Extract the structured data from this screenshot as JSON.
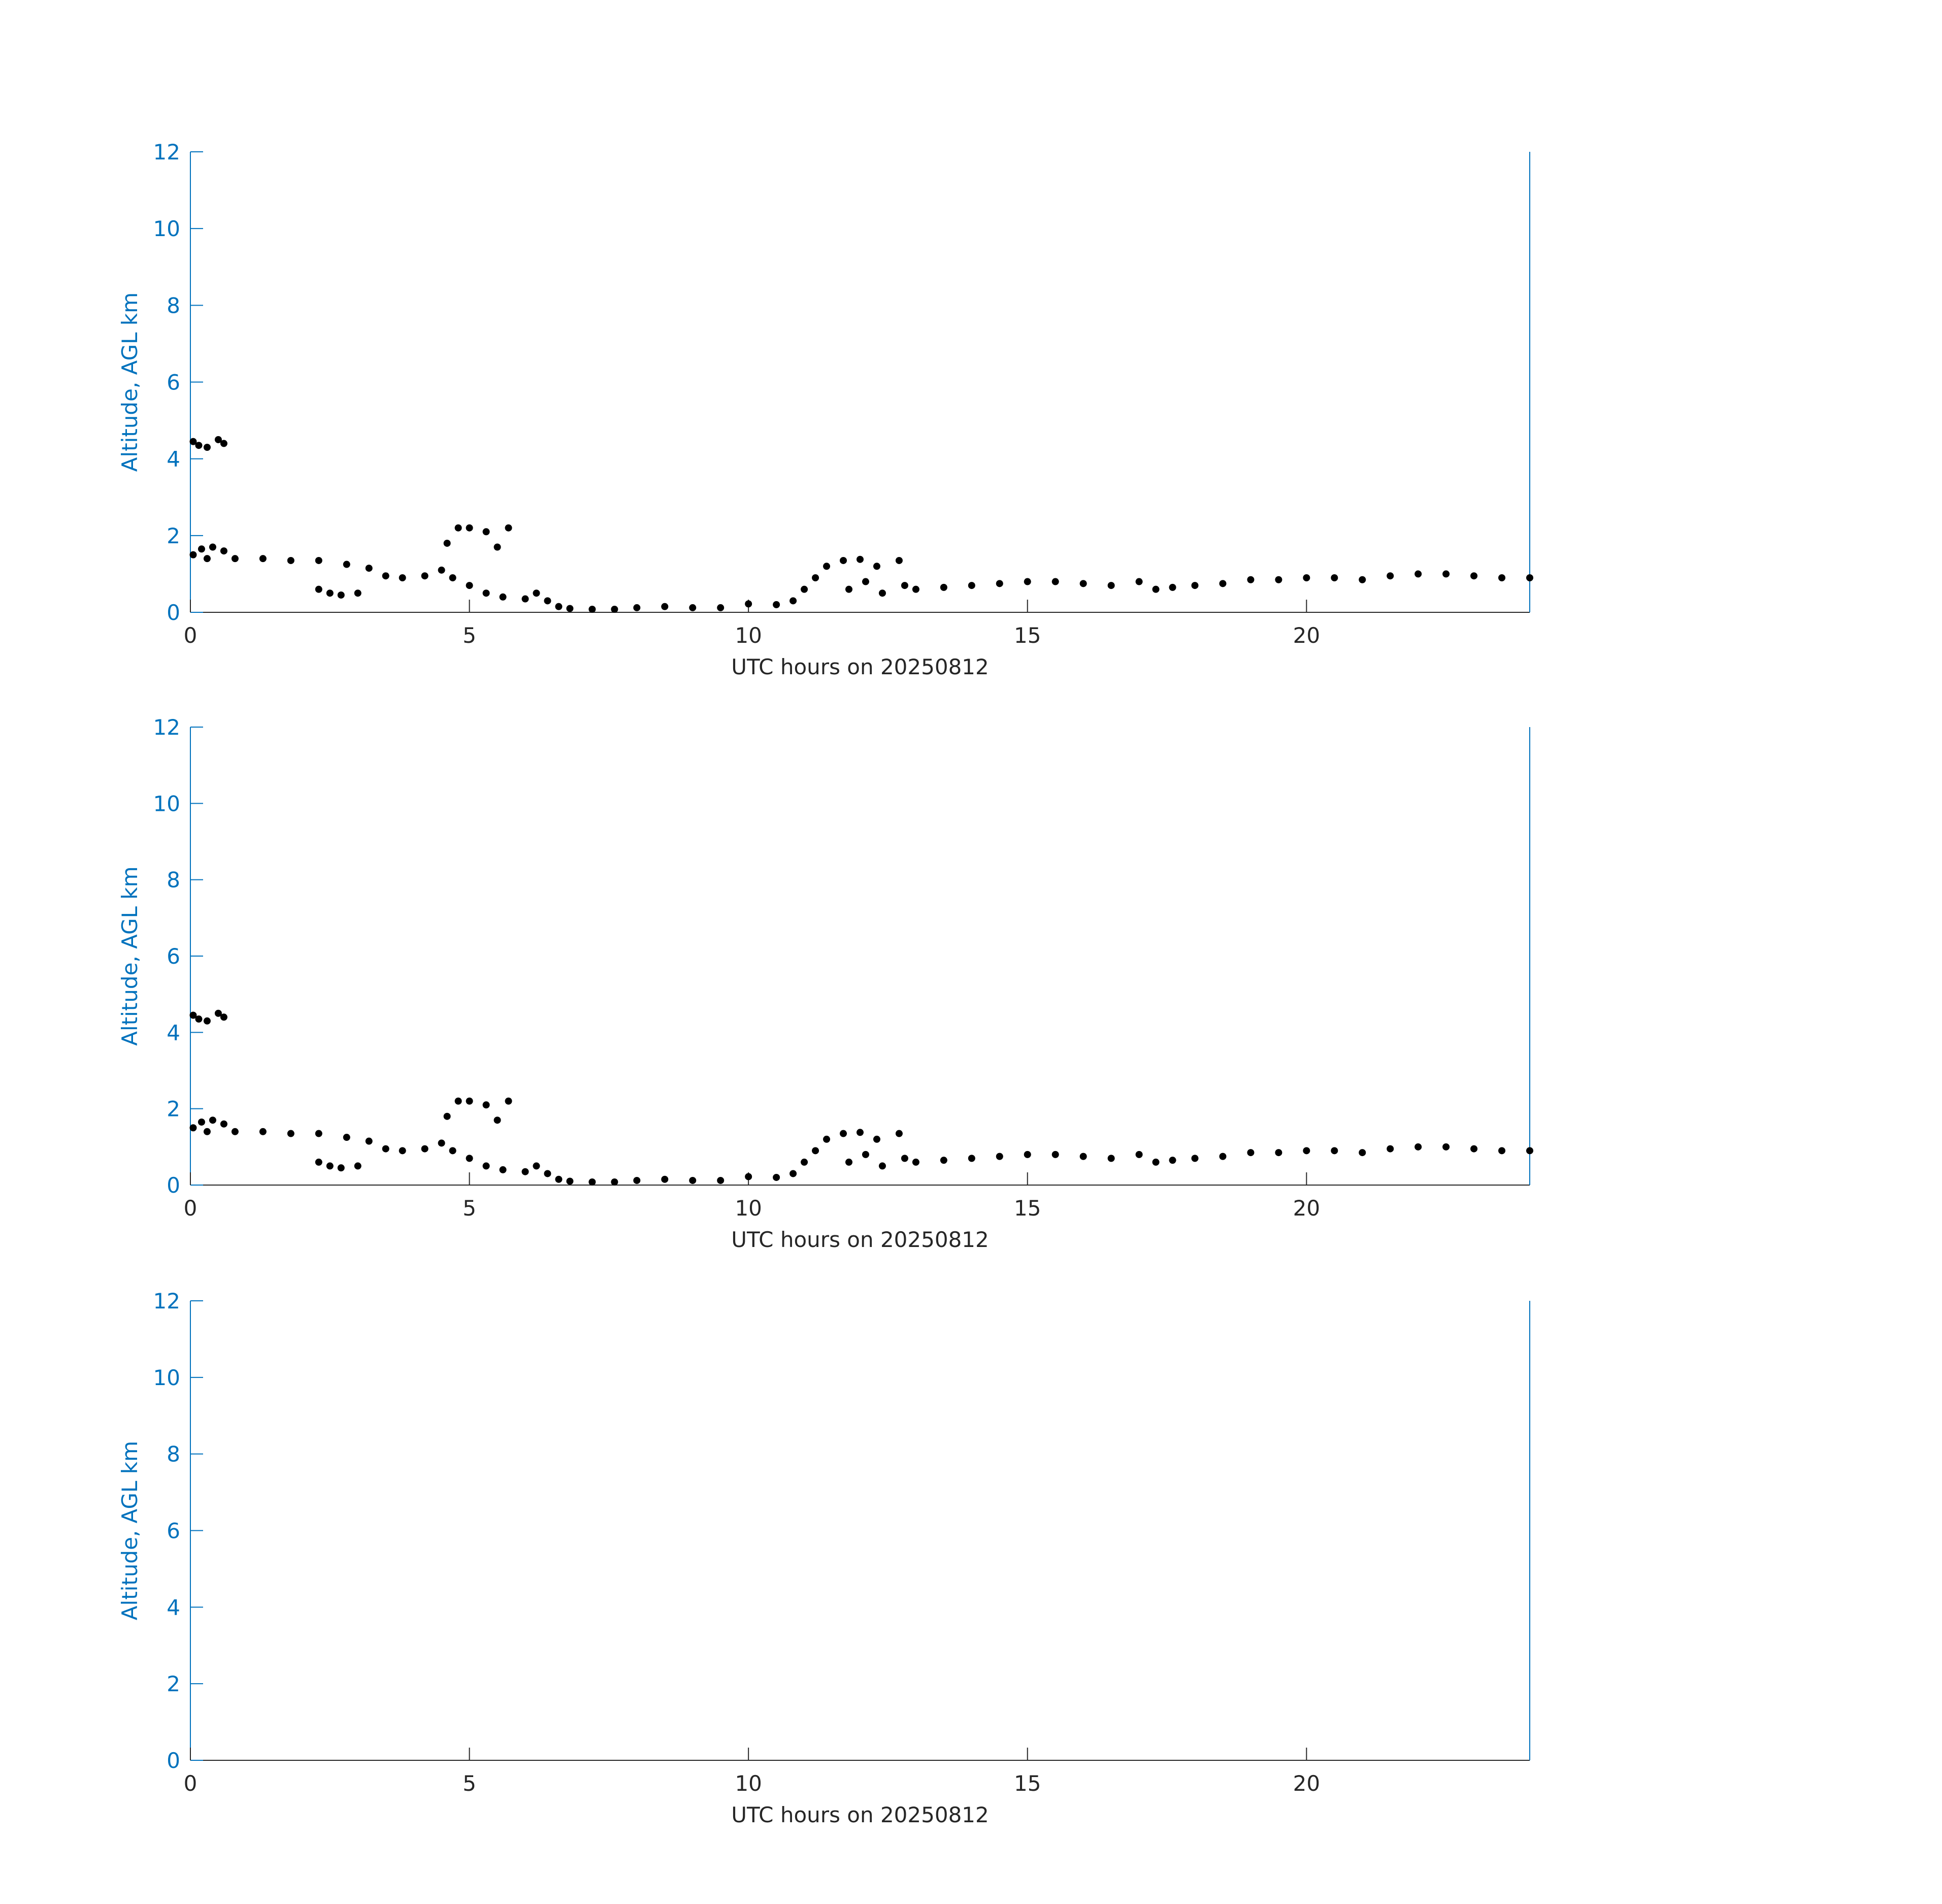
{
  "chart_data": [
    {
      "type": "scatter",
      "xlabel": "UTC hours on 20250812",
      "ylabel": "Altitude, AGL km",
      "xlim": [
        0,
        24
      ],
      "ylim": [
        0,
        12
      ],
      "xticks": [
        0,
        5,
        10,
        15,
        20
      ],
      "yticks": [
        0,
        2,
        4,
        6,
        8,
        10,
        12
      ],
      "y_axis_color": "#0072bd",
      "x_axis_color": "#262626",
      "series": [
        {
          "color": "#000000",
          "x": [
            0.05,
            0.15,
            0.3,
            0.5,
            0.6,
            0.05,
            0.2,
            0.4,
            0.6,
            0.3,
            0.8,
            1.3,
            1.8,
            2.3,
            2.8,
            3.2,
            3.5,
            3.8,
            4.2,
            4.5,
            4.6,
            4.8,
            5.0,
            5.3,
            5.5,
            5.7,
            4.7,
            5.0,
            5.3,
            5.6,
            2.3,
            2.5,
            2.7,
            3.0,
            6.0,
            6.2,
            6.4,
            6.6,
            6.8,
            7.2,
            7.6,
            8.0,
            8.5,
            9.0,
            9.5,
            10.0,
            10.5,
            10.8,
            11.0,
            11.2,
            11.4,
            11.7,
            12.0,
            12.3,
            12.7,
            11.8,
            12.1,
            12.4,
            12.8,
            13.0,
            13.5,
            14.0,
            14.5,
            15.0,
            15.5,
            16.0,
            16.5,
            17.0,
            17.3,
            17.6,
            18.0,
            18.5,
            19.0,
            19.5,
            20.0,
            20.5,
            21.0,
            21.5,
            22.0,
            22.5,
            23.0,
            23.5,
            24.0
          ],
          "y": [
            4.45,
            4.35,
            4.3,
            4.5,
            4.4,
            1.5,
            1.65,
            1.7,
            1.6,
            1.4,
            1.4,
            1.4,
            1.35,
            1.35,
            1.25,
            1.15,
            0.95,
            0.9,
            0.95,
            1.1,
            1.8,
            2.2,
            2.2,
            2.1,
            1.7,
            2.2,
            0.9,
            0.7,
            0.5,
            0.4,
            0.6,
            0.5,
            0.45,
            0.5,
            0.35,
            0.5,
            0.3,
            0.15,
            0.1,
            0.08,
            0.08,
            0.12,
            0.15,
            0.12,
            0.12,
            0.22,
            0.2,
            0.3,
            0.6,
            0.9,
            1.2,
            1.35,
            1.38,
            1.2,
            1.35,
            0.6,
            0.8,
            0.5,
            0.7,
            0.6,
            0.65,
            0.7,
            0.75,
            0.8,
            0.8,
            0.75,
            0.7,
            0.8,
            0.6,
            0.65,
            0.7,
            0.75,
            0.85,
            0.85,
            0.9,
            0.9,
            0.85,
            0.95,
            1.0,
            1.0,
            0.95,
            0.9,
            0.9
          ]
        }
      ]
    },
    {
      "type": "scatter",
      "xlabel": "UTC hours on 20250812",
      "ylabel": "Altitude, AGL km",
      "xlim": [
        0,
        24
      ],
      "ylim": [
        0,
        12
      ],
      "xticks": [
        0,
        5,
        10,
        15,
        20
      ],
      "yticks": [
        0,
        2,
        4,
        6,
        8,
        10,
        12
      ],
      "y_axis_color": "#0072bd",
      "x_axis_color": "#262626",
      "series": [
        {
          "color": "#000000",
          "x": [
            0.05,
            0.15,
            0.3,
            0.5,
            0.6,
            0.05,
            0.2,
            0.4,
            0.6,
            0.3,
            0.8,
            1.3,
            1.8,
            2.3,
            2.8,
            3.2,
            3.5,
            3.8,
            4.2,
            4.5,
            4.6,
            4.8,
            5.0,
            5.3,
            5.5,
            5.7,
            4.7,
            5.0,
            5.3,
            5.6,
            2.3,
            2.5,
            2.7,
            3.0,
            6.0,
            6.2,
            6.4,
            6.6,
            6.8,
            7.2,
            7.6,
            8.0,
            8.5,
            9.0,
            9.5,
            10.0,
            10.5,
            10.8,
            11.0,
            11.2,
            11.4,
            11.7,
            12.0,
            12.3,
            12.7,
            11.8,
            12.1,
            12.4,
            12.8,
            13.0,
            13.5,
            14.0,
            14.5,
            15.0,
            15.5,
            16.0,
            16.5,
            17.0,
            17.3,
            17.6,
            18.0,
            18.5,
            19.0,
            19.5,
            20.0,
            20.5,
            21.0,
            21.5,
            22.0,
            22.5,
            23.0,
            23.5,
            24.0
          ],
          "y": [
            4.45,
            4.35,
            4.3,
            4.5,
            4.4,
            1.5,
            1.65,
            1.7,
            1.6,
            1.4,
            1.4,
            1.4,
            1.35,
            1.35,
            1.25,
            1.15,
            0.95,
            0.9,
            0.95,
            1.1,
            1.8,
            2.2,
            2.2,
            2.1,
            1.7,
            2.2,
            0.9,
            0.7,
            0.5,
            0.4,
            0.6,
            0.5,
            0.45,
            0.5,
            0.35,
            0.5,
            0.3,
            0.15,
            0.1,
            0.08,
            0.08,
            0.12,
            0.15,
            0.12,
            0.12,
            0.22,
            0.2,
            0.3,
            0.6,
            0.9,
            1.2,
            1.35,
            1.38,
            1.2,
            1.35,
            0.6,
            0.8,
            0.5,
            0.7,
            0.6,
            0.65,
            0.7,
            0.75,
            0.8,
            0.8,
            0.75,
            0.7,
            0.8,
            0.6,
            0.65,
            0.7,
            0.75,
            0.85,
            0.85,
            0.9,
            0.9,
            0.85,
            0.95,
            1.0,
            1.0,
            0.95,
            0.9,
            0.9
          ]
        }
      ]
    },
    {
      "type": "scatter",
      "xlabel": "UTC hours on 20250812",
      "ylabel": "Altitude, AGL km",
      "xlim": [
        0,
        24
      ],
      "ylim": [
        0,
        12
      ],
      "xticks": [
        0,
        5,
        10,
        15,
        20
      ],
      "yticks": [
        0,
        2,
        4,
        6,
        8,
        10,
        12
      ],
      "y_axis_color": "#0072bd",
      "x_axis_color": "#262626"
    }
  ]
}
